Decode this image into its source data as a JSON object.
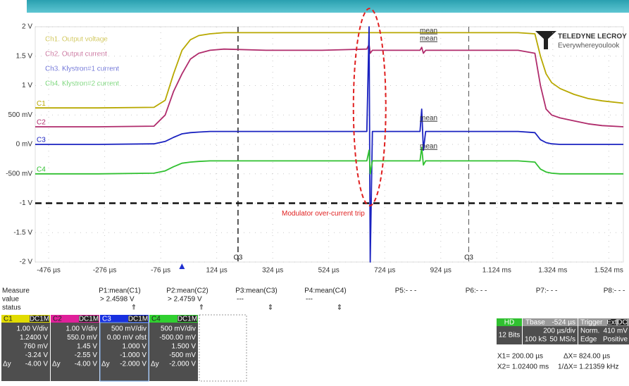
{
  "chart_data": {
    "type": "line",
    "x": [
      -524,
      -300,
      -100,
      -60,
      -30,
      0,
      30,
      60,
      100,
      150,
      300,
      500,
      660,
      668,
      672,
      680,
      850,
      856,
      862,
      870,
      1000,
      1200,
      1260,
      1280,
      1300,
      1320,
      1350,
      1400,
      1450,
      1500,
      1576
    ],
    "series": [
      {
        "name": "Ch1. Output voltage",
        "color": "#b8a800",
        "values": [
          0.62,
          0.62,
          0.63,
          0.75,
          1.2,
          1.6,
          1.78,
          1.85,
          1.88,
          1.9,
          1.9,
          1.9,
          1.9,
          1.9,
          1.9,
          1.9,
          1.9,
          1.9,
          1.9,
          1.9,
          1.9,
          1.9,
          1.88,
          1.5,
          1.2,
          1.05,
          0.95,
          0.85,
          0.78,
          0.74,
          0.7
        ]
      },
      {
        "name": "Ch2. Output current",
        "color": "#b02c6c",
        "values": [
          0.3,
          0.3,
          0.31,
          0.5,
          0.9,
          1.2,
          1.45,
          1.55,
          1.6,
          1.62,
          1.6,
          1.6,
          1.62,
          1.7,
          1.55,
          1.6,
          1.6,
          1.65,
          1.55,
          1.6,
          1.6,
          1.6,
          1.55,
          1.0,
          0.6,
          0.5,
          0.45,
          0.4,
          0.35,
          0.32,
          0.3
        ]
      },
      {
        "name": "Ch3. Klystron#1 current",
        "color": "#1a22c0",
        "values": [
          0,
          0,
          0.01,
          0.05,
          0.12,
          0.18,
          0.2,
          0.21,
          0.22,
          0.22,
          0.22,
          0.22,
          0.22,
          2.0,
          -2.0,
          0.22,
          0.22,
          0.6,
          -0.1,
          0.22,
          0.22,
          0.22,
          0.2,
          0.08,
          0.03,
          0.01,
          0,
          0,
          0,
          0,
          0
        ]
      },
      {
        "name": "Ch4. Klystron#2 current",
        "color": "#30c030",
        "values": [
          -0.5,
          -0.5,
          -0.49,
          -0.45,
          -0.38,
          -0.32,
          -0.3,
          -0.29,
          -0.28,
          -0.28,
          -0.28,
          -0.28,
          -0.28,
          -0.1,
          -0.5,
          -0.28,
          -0.28,
          -0.05,
          -0.35,
          -0.28,
          -0.28,
          -0.28,
          -0.3,
          -0.42,
          -0.47,
          -0.49,
          -0.5,
          -0.5,
          -0.5,
          -0.5,
          -0.5
        ]
      }
    ],
    "xlim": [
      -524,
      1576
    ],
    "xticks": [
      {
        "value": -476,
        "label": "-476 µs"
      },
      {
        "value": -276,
        "label": "-276 µs"
      },
      {
        "value": -76,
        "label": "-76 µs"
      },
      {
        "value": 124,
        "label": "124 µs"
      },
      {
        "value": 324,
        "label": "324 µs"
      },
      {
        "value": 524,
        "label": "524 µs"
      },
      {
        "value": 724,
        "label": "724 µs"
      },
      {
        "value": 924,
        "label": "924 µs"
      },
      {
        "value": 1124,
        "label": "1.124 ms"
      },
      {
        "value": 1324,
        "label": "1.324 ms"
      },
      {
        "value": 1524,
        "label": "1.524 ms"
      }
    ],
    "ylim": [
      -2,
      2
    ],
    "yticks": [
      {
        "value": 2,
        "label": "2 V"
      },
      {
        "value": 1.5,
        "label": "1.5 V"
      },
      {
        "value": 1,
        "label": "1 V"
      },
      {
        "value": 0.5,
        "label": "500 mV"
      },
      {
        "value": 0,
        "label": "0 mV"
      },
      {
        "value": -0.5,
        "label": "-500 mV"
      },
      {
        "value": -1,
        "label": "-1 V"
      },
      {
        "value": -1.5,
        "label": "-1.5 V"
      },
      {
        "value": -2,
        "label": "-2 V"
      }
    ],
    "grid": true,
    "threshold": {
      "value": -1,
      "label": "Modulator over-current trip"
    },
    "cursors": [
      {
        "value": 200,
        "label": "C3"
      },
      {
        "value": 1024,
        "label": "C3"
      }
    ],
    "channel_markers": [
      "C1",
      "C2",
      "C3",
      "C4"
    ],
    "trace_tags": [
      "mean",
      "mean",
      "mean",
      "mean"
    ]
  },
  "logo": {
    "brand": "TELEDYNE LECROY",
    "tagline": "Everywhereyoulook"
  },
  "measure": {
    "title": "Measure",
    "row_labels": [
      "value",
      "status"
    ],
    "columns": [
      {
        "name": "P1:mean(C1)",
        "value": "> 2.4598 V",
        "status": "⇑"
      },
      {
        "name": "P2:mean(C2)",
        "value": "> 2.4759 V",
        "status": "⇑"
      },
      {
        "name": "P3:mean(C3)",
        "value": "---",
        "status": "⇕"
      },
      {
        "name": "P4:mean(C4)",
        "value": "---",
        "status": "⇕"
      },
      {
        "name": "P5:- - -"
      },
      {
        "name": "P6:- - -"
      },
      {
        "name": "P7:- - -"
      },
      {
        "name": "P8:- - -"
      }
    ]
  },
  "channels": {
    "delta_label": "Δy",
    "items": [
      {
        "name": "C1",
        "coupling": "DC1M",
        "color": "#e2dc00",
        "lines": [
          "1.00 V/div",
          "1.2400 V",
          "760 mV",
          "-3.24 V",
          "-4.00 V"
        ]
      },
      {
        "name": "C2",
        "coupling": "DC1M",
        "color": "#e0209a",
        "lines": [
          "1.00 V/div",
          "550.0 mV",
          "1.45 V",
          "-2.55 V",
          "-4.00 V"
        ]
      },
      {
        "name": "C3",
        "coupling": "DC1M",
        "color": "#1830e0",
        "lines": [
          "500 mV/div",
          "0.00 mV ofst",
          "1.000 V",
          "-1.000 V",
          "-2.000 V"
        ]
      },
      {
        "name": "C4",
        "coupling": "DC1M",
        "color": "#30d030",
        "lines": [
          "500 mV/div",
          "-500.00 mV",
          "1.500 V",
          "-500 mV",
          "-2.000 V"
        ]
      }
    ]
  },
  "acquisition": {
    "mode": "HD",
    "bits": "12 Bits",
    "tbase_label": "Tbase",
    "tbase": "-524 µs",
    "rate_div": "200 µs/div",
    "samples": "100 kS",
    "sample_rate": "50 MS/s",
    "trigger_label": "Trigger",
    "trigger_tags": [
      "Ext",
      "DC"
    ],
    "trigger_mode": "Norm.",
    "trigger_level": "410 mV",
    "trigger_type": "Edge",
    "trigger_slope": "Positive"
  },
  "cursor_readout": {
    "x1": "X1=  200.00 µs",
    "dx": "ΔX=  824.00 µs",
    "x2": "X2= 1.02400 ms",
    "inv_dx": "1/ΔX=  1.21359 kHz"
  }
}
